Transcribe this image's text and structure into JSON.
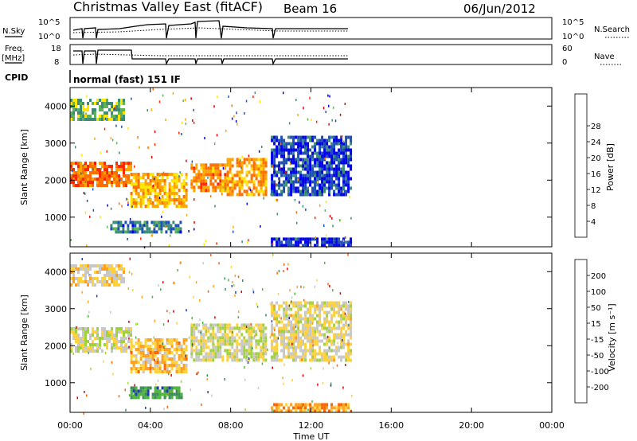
{
  "header": {
    "title": "Christmas Valley East (fitACF)",
    "beam": "Beam 16",
    "date": "06/Jun/2012"
  },
  "strips": {
    "nsky": {
      "label": "N.Sky",
      "ticks": [
        "10^5",
        "10^0"
      ],
      "right_ticks": [
        "10^5",
        "10^0"
      ],
      "right_label": "N.Search"
    },
    "freq": {
      "label_line1": "Freq.",
      "label_line2": "[MHz]",
      "ticks": [
        "18",
        "8"
      ],
      "right_ticks": [
        "60",
        "0"
      ],
      "right_label": "Nave"
    },
    "cpid": {
      "label": "CPID",
      "value": "normal (fast) 151 IF"
    }
  },
  "chart_data": [
    {
      "type": "heatmap",
      "name": "Power",
      "ylabel": "Slant Range [km]",
      "yticks": [
        1000,
        2000,
        3000,
        4000
      ],
      "ylim": [
        200,
        4500
      ],
      "xlabel": "Time UT",
      "xticks": [
        "00:00",
        "04:00",
        "08:00",
        "12:00",
        "16:00",
        "20:00",
        "00:00"
      ],
      "xlim_hours": [
        0,
        24
      ],
      "data_end_hour": 14,
      "colorbar": {
        "label": "Power [dB]",
        "ticks": [
          "4",
          "8",
          "12",
          "16",
          "20",
          "24",
          "28"
        ],
        "colors": [
          "#0000ee",
          "#1e50b4",
          "#3c8c78",
          "#5fb45a",
          "#ffe600",
          "#ffa500",
          "#ff6e00",
          "#ff2800",
          "#e60000"
        ]
      },
      "regions": [
        {
          "t0": 0.0,
          "t1": 3.0,
          "r0": 1850,
          "r1": 2500,
          "level": 0.75
        },
        {
          "t0": 3.0,
          "t1": 5.8,
          "r0": 1300,
          "r1": 2200,
          "level": 0.6
        },
        {
          "t0": 6.0,
          "t1": 7.8,
          "r0": 1700,
          "r1": 2450,
          "level": 0.7
        },
        {
          "t0": 7.8,
          "t1": 9.8,
          "r0": 1600,
          "r1": 2600,
          "level": 0.65
        },
        {
          "t0": 0.0,
          "t1": 2.7,
          "r0": 3600,
          "r1": 4200,
          "level": 0.35
        },
        {
          "t0": 2.0,
          "t1": 5.5,
          "r0": 600,
          "r1": 900,
          "level": 0.2
        },
        {
          "t0": 10.0,
          "t1": 14.0,
          "r0": 1600,
          "r1": 3200,
          "level": 0.1
        },
        {
          "t0": 10.0,
          "t1": 14.0,
          "r0": 200,
          "r1": 450,
          "level": 0.05
        }
      ]
    },
    {
      "type": "heatmap",
      "name": "Velocity",
      "ylabel": "Slant Range [km]",
      "yticks": [
        1000,
        2000,
        3000,
        4000
      ],
      "ylim": [
        200,
        4500
      ],
      "xlabel": "Time UT",
      "xticks": [
        "00:00",
        "04:00",
        "08:00",
        "12:00",
        "16:00",
        "20:00",
        "00:00"
      ],
      "xlim_hours": [
        0,
        24
      ],
      "data_end_hour": 14,
      "colorbar": {
        "label": "Velocity [m s⁻¹]",
        "ticks": [
          "200",
          "100",
          "50",
          "15",
          "-15",
          "-50",
          "-100",
          "-200"
        ],
        "colors": [
          "#1e3caa",
          "#3c8c5a",
          "#50b43c",
          "#a0d23c",
          "#c8c8c8",
          "#ffd23c",
          "#ffa01e",
          "#ff6400",
          "#e60000"
        ]
      },
      "regions": [
        {
          "t0": 0.0,
          "t1": 3.0,
          "r0": 1850,
          "r1": 2500,
          "level": 0.5
        },
        {
          "t0": 3.0,
          "t1": 5.8,
          "r0": 1300,
          "r1": 2200,
          "level": 0.68
        },
        {
          "t0": 6.0,
          "t1": 9.8,
          "r0": 1600,
          "r1": 2600,
          "level": 0.5
        },
        {
          "t0": 0.0,
          "t1": 2.7,
          "r0": 3600,
          "r1": 4200,
          "level": 0.6
        },
        {
          "t0": 3.0,
          "t1": 5.5,
          "r0": 600,
          "r1": 900,
          "level": 0.15
        },
        {
          "t0": 10.0,
          "t1": 14.0,
          "r0": 1600,
          "r1": 3200,
          "level": 0.55
        },
        {
          "t0": 10.0,
          "t1": 14.0,
          "r0": 200,
          "r1": 450,
          "level": 0.75
        }
      ]
    }
  ]
}
